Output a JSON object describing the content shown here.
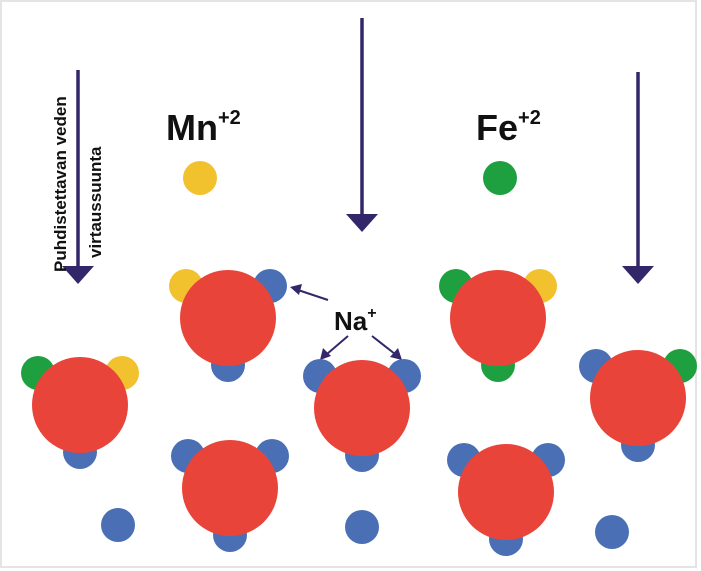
{
  "flow_label": {
    "lines": [
      "Puhdistettavan veden",
      "virtaussuunta"
    ]
  },
  "ions": [
    {
      "symbol": "Mn",
      "charge": "+2"
    },
    {
      "symbol": "Fe",
      "charge": "+2"
    }
  ],
  "sodium": {
    "symbol": "Na",
    "charge": "+"
  }
}
